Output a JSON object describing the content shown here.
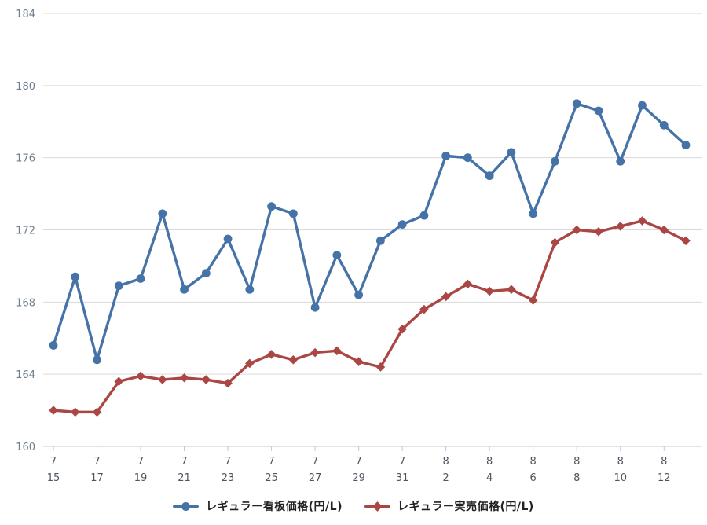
{
  "colors": {
    "series_blue": "#4572A7",
    "series_red": "#AA4643",
    "grid": "#D9D9D9",
    "axis": "#C0C9D2",
    "y_label": "#6E7E8E",
    "x_label": "#4D5660",
    "legend_text": "#222222",
    "background": "#FFFFFF"
  },
  "chart_data": {
    "type": "line",
    "title": "",
    "xlabel": "",
    "ylabel": "",
    "ylim": [
      160,
      184
    ],
    "yticks": [
      160,
      164,
      168,
      172,
      176,
      180,
      184
    ],
    "grid": "horizontal",
    "legend_position": "bottom",
    "x_tick_every": 2,
    "x": [
      "7/15",
      "7/16",
      "7/17",
      "7/18",
      "7/19",
      "7/20",
      "7/21",
      "7/22",
      "7/23",
      "7/24",
      "7/25",
      "7/26",
      "7/27",
      "7/28",
      "7/29",
      "7/30",
      "7/31",
      "8/1",
      "8/2",
      "8/3",
      "8/4",
      "8/5",
      "8/6",
      "8/7",
      "8/8",
      "8/9",
      "8/10",
      "8/11",
      "8/12",
      "8/13"
    ],
    "x_tick_labels": [
      [
        "7",
        "15"
      ],
      [
        "7",
        "17"
      ],
      [
        "7",
        "19"
      ],
      [
        "7",
        "21"
      ],
      [
        "7",
        "23"
      ],
      [
        "7",
        "25"
      ],
      [
        "7",
        "27"
      ],
      [
        "7",
        "29"
      ],
      [
        "7",
        "31"
      ],
      [
        "8",
        "2"
      ],
      [
        "8",
        "4"
      ],
      [
        "8",
        "6"
      ],
      [
        "8",
        "8"
      ],
      [
        "8",
        "10"
      ],
      [
        "8",
        "12"
      ]
    ],
    "series": [
      {
        "name": "レギュラー看板価格(円/L)",
        "color": "#4572A7",
        "marker": "circle",
        "values": [
          165.6,
          169.4,
          164.8,
          168.9,
          169.3,
          172.9,
          168.7,
          169.6,
          171.5,
          168.7,
          173.3,
          172.9,
          167.7,
          170.6,
          168.4,
          171.4,
          172.3,
          172.8,
          176.1,
          176.0,
          175.0,
          176.3,
          172.9,
          175.8,
          179.0,
          178.6,
          175.8,
          178.9,
          177.8,
          176.7
        ]
      },
      {
        "name": "レギュラー実売価格(円/L)",
        "color": "#AA4643",
        "marker": "diamond",
        "values": [
          162.0,
          161.9,
          161.9,
          163.6,
          163.9,
          163.7,
          163.8,
          163.7,
          163.5,
          164.6,
          165.1,
          164.8,
          165.2,
          165.3,
          164.7,
          164.4,
          166.5,
          167.6,
          168.3,
          169.0,
          168.6,
          168.7,
          168.1,
          171.3,
          172.0,
          171.9,
          172.2,
          172.5,
          172.0,
          171.4
        ]
      }
    ]
  }
}
